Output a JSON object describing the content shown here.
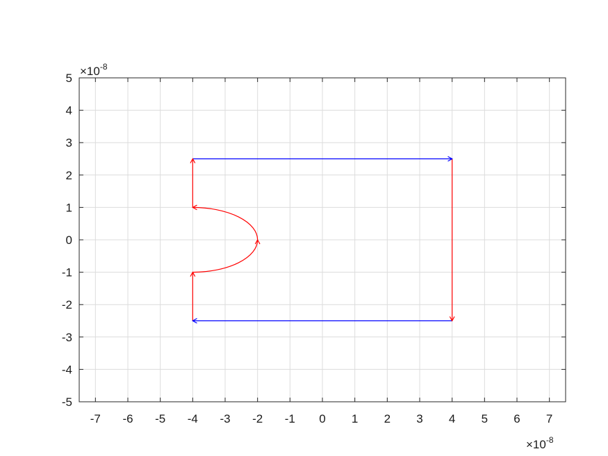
{
  "chart_data": {
    "type": "line",
    "title": "",
    "xlabel": "",
    "ylabel": "",
    "xlim": [
      -7.5,
      7.5
    ],
    "ylim": [
      -5,
      5
    ],
    "x_ticks": [
      -7,
      -6,
      -5,
      -4,
      -3,
      -2,
      -1,
      0,
      1,
      2,
      3,
      4,
      5,
      6,
      7
    ],
    "y_ticks": [
      -5,
      -4,
      -3,
      -2,
      -1,
      0,
      1,
      2,
      3,
      4,
      5
    ],
    "x_tick_labels": [
      "-7",
      "-6",
      "-5",
      "-4",
      "-3",
      "-2",
      "-1",
      "0",
      "1",
      "2",
      "3",
      "4",
      "5",
      "6",
      "7"
    ],
    "y_tick_labels": [
      "-5",
      "-4",
      "-3",
      "-2",
      "-1",
      "0",
      "1",
      "2",
      "3",
      "4",
      "5"
    ],
    "x_multiplier": {
      "base": "×10",
      "exponent": "-8"
    },
    "y_multiplier": {
      "base": "×10",
      "exponent": "-8"
    },
    "grid": true,
    "legend": "none",
    "colors": {
      "red": "#ff0000",
      "blue": "#0000ff",
      "grid": "#dcdcdc",
      "axis": "#262626"
    },
    "series": [
      {
        "color": "#ff0000",
        "shape": "line",
        "points": [
          [
            -4,
            -2.5
          ],
          [
            -4,
            -1
          ]
        ]
      },
      {
        "color": "#ff0000",
        "shape": "arc",
        "center": [
          -4,
          0
        ],
        "radius_x": 2,
        "radius_y": 1,
        "from": [
          -4,
          -1
        ],
        "via": [
          -2,
          0
        ],
        "to": [
          -4,
          1
        ]
      },
      {
        "color": "#ff0000",
        "shape": "line",
        "points": [
          [
            -4,
            1
          ],
          [
            -4,
            2.5
          ]
        ]
      },
      {
        "color": "#0000ff",
        "shape": "line",
        "points": [
          [
            -4,
            2.5
          ],
          [
            4,
            2.5
          ]
        ]
      },
      {
        "color": "#ff0000",
        "shape": "line",
        "points": [
          [
            4,
            2.5
          ],
          [
            4,
            -2.5
          ]
        ]
      },
      {
        "color": "#0000ff",
        "shape": "line",
        "points": [
          [
            4,
            -2.5
          ],
          [
            -4,
            -2.5
          ]
        ]
      }
    ],
    "arrowheads": [
      {
        "at": [
          -4,
          2.5
        ],
        "direction": "up",
        "color": "#ff0000"
      },
      {
        "at": [
          -4,
          1
        ],
        "direction": "left",
        "color": "#ff0000"
      },
      {
        "at": [
          -2,
          0
        ],
        "direction": "up",
        "color": "#ff0000"
      },
      {
        "at": [
          -4,
          -1
        ],
        "direction": "up",
        "color": "#ff0000"
      },
      {
        "at": [
          4,
          2.5
        ],
        "direction": "right",
        "color": "#0000ff"
      },
      {
        "at": [
          4,
          -2.5
        ],
        "direction": "down",
        "color": "#ff0000"
      },
      {
        "at": [
          -4,
          -2.5
        ],
        "direction": "left",
        "color": "#0000ff"
      }
    ]
  }
}
